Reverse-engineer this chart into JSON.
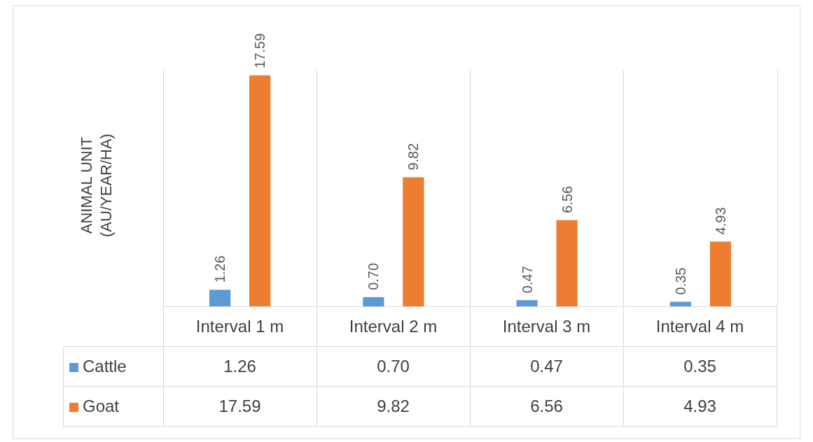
{
  "chart_data": {
    "type": "bar",
    "ylabel": "ANIMAL UNIT (AU/YEAR/HA)",
    "categories": [
      "Interval 1 m",
      "Interval 2 m",
      "Interval 3 m",
      "Interval 4 m"
    ],
    "series": [
      {
        "name": "Cattle",
        "color": "#5b9bd5",
        "values": [
          1.26,
          0.7,
          0.47,
          0.35
        ],
        "value_labels": [
          "1.26",
          "0.70",
          "0.47",
          "0.35"
        ]
      },
      {
        "name": "Goat",
        "color": "#ed7d31",
        "values": [
          17.59,
          9.82,
          6.56,
          4.93
        ],
        "value_labels": [
          "17.59",
          "9.82",
          "6.56",
          "4.93"
        ]
      }
    ],
    "grid": "x",
    "legend": "bottom"
  }
}
